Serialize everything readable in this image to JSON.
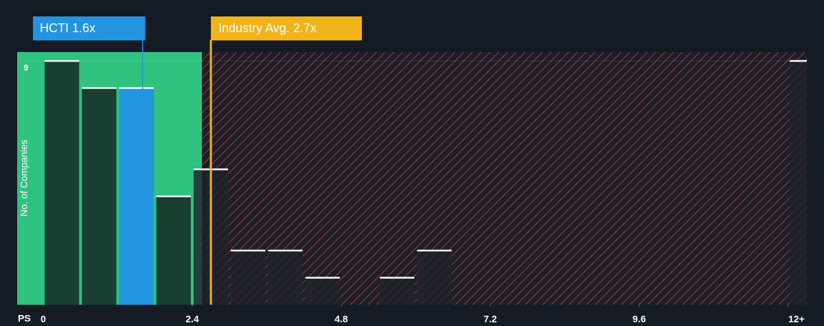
{
  "chart_data": {
    "type": "histogram",
    "bins": [
      0,
      0.6,
      1.2,
      1.8,
      2.4,
      3.0,
      3.6,
      4.2,
      4.8,
      5.4,
      6.0,
      6.6,
      7.2,
      7.8,
      8.4,
      9.0,
      9.6,
      10.2,
      10.8,
      11.4,
      12.0,
      12.6
    ],
    "values": [
      9,
      8,
      8,
      4,
      5,
      2,
      2,
      1,
      0,
      1,
      2,
      0,
      0,
      0,
      0,
      0,
      0,
      0,
      0,
      0,
      9
    ],
    "xlabel": "PS",
    "ylabel": "No. of Companies",
    "xlim": [
      0,
      12.3
    ],
    "xticks": [
      0,
      2.4,
      4.8,
      7.2,
      9.6,
      {
        "value": 12,
        "label": "12+"
      }
    ],
    "ylim": [
      0,
      9
    ],
    "yticks": [
      9
    ],
    "highlight": {
      "label": "HCTI 1.6x",
      "value": 1.6,
      "color": "#2394e0"
    },
    "reference": {
      "label": "Industry Avg. 2.7x",
      "value": 2.7,
      "color": "#f0b31a"
    }
  }
}
